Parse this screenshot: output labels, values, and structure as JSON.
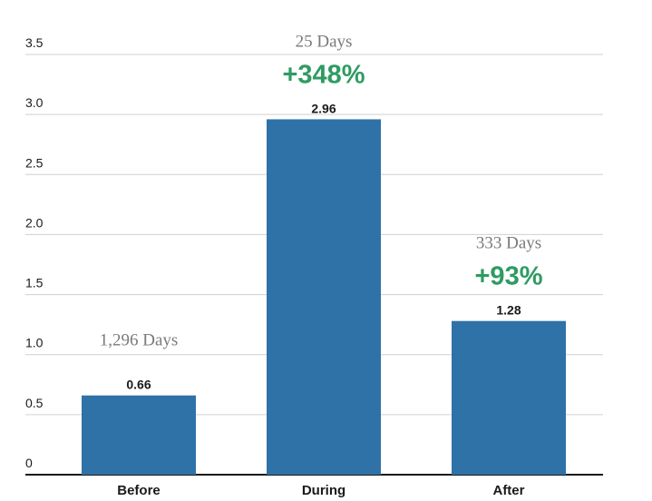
{
  "chart_data": {
    "type": "bar",
    "categories": [
      "Before",
      "During",
      "After"
    ],
    "values": [
      0.66,
      2.96,
      1.28
    ],
    "data_labels": [
      "0.66",
      "2.96",
      "1.28"
    ],
    "title": "",
    "xlabel": "",
    "ylabel": "",
    "ylim": [
      0,
      3.5
    ],
    "yticks": [
      0,
      0.5,
      1.0,
      1.5,
      2.0,
      2.5,
      3.0,
      3.5
    ],
    "ytick_labels": [
      "0",
      "0.5",
      "1.0",
      "1.5",
      "2.0",
      "2.5",
      "3.0",
      "3.5"
    ],
    "grid": true,
    "bar_color": "#2e72a8",
    "annotations": [
      {
        "category": "Before",
        "duration": "1,296 Days",
        "change": ""
      },
      {
        "category": "During",
        "duration": "25 Days",
        "change": "+348%"
      },
      {
        "category": "After",
        "duration": "333 Days",
        "change": "+93%"
      }
    ],
    "change_color": "#2e9b63",
    "duration_color": "#7a7a7a"
  }
}
